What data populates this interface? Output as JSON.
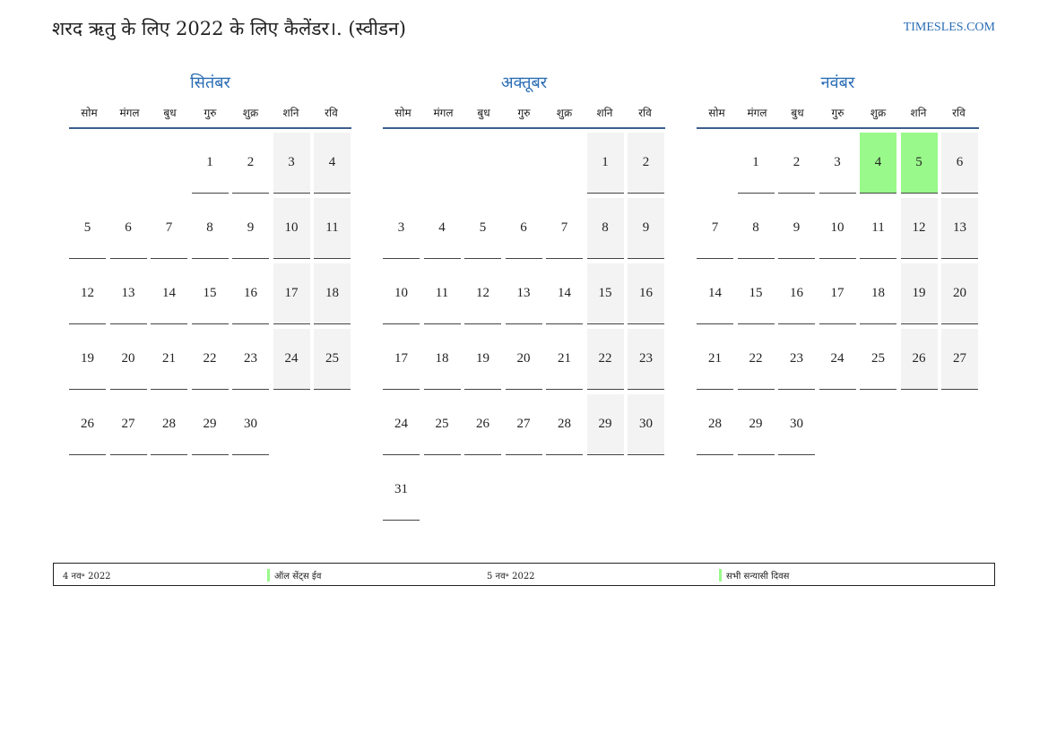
{
  "header": {
    "title": "शरद ऋतु के लिए 2022 के लिए कैलेंडर।. (स्वीडन)",
    "site": "TIMESLES.COM"
  },
  "weekdays": [
    "सोम",
    "मंगल",
    "बुध",
    "गुरु",
    "शुक्र",
    "शनि",
    "रवि"
  ],
  "months": [
    {
      "name": "सितंबर",
      "first_weekday": 3,
      "days": 30,
      "highlights": []
    },
    {
      "name": "अक्तूबर",
      "first_weekday": 5,
      "days": 31,
      "highlights": []
    },
    {
      "name": "नवंबर",
      "first_weekday": 1,
      "days": 30,
      "highlights": [
        4,
        5
      ]
    }
  ],
  "colors": {
    "accent": "#2a6db5",
    "highlight": "#99f98a",
    "weekend": "#f3f3f3"
  },
  "legend": [
    {
      "date": "4 नव॰ 2022",
      "event": "ऑल सेंट्स ईव"
    },
    {
      "date": "5 नव॰ 2022",
      "event": "सभी सन्यासी दिवस"
    }
  ]
}
